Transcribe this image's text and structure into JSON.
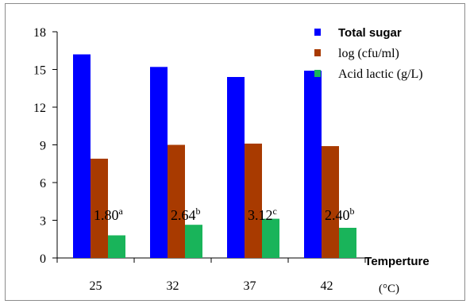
{
  "chart_data": {
    "type": "bar",
    "title": "",
    "xlabel": "Temperture",
    "xunit": "(°C)",
    "ylabel": "",
    "ylim": [
      0,
      18
    ],
    "yticks": [
      0,
      3,
      6,
      9,
      12,
      15,
      18
    ],
    "grid": false,
    "legend_position": "top-right",
    "categories": [
      "25",
      "32",
      "37",
      "42"
    ],
    "series": [
      {
        "name": "Total sugar",
        "color": "#0000ff",
        "values": [
          16.2,
          15.2,
          14.4,
          14.9
        ]
      },
      {
        "name": "log (cfu/ml)",
        "color": "#a83a00",
        "values": [
          7.9,
          9.0,
          9.1,
          8.9
        ]
      },
      {
        "name": "Acid lactic (g/L)",
        "color": "#19b45a",
        "values": [
          1.8,
          2.64,
          3.12,
          2.4
        ]
      }
    ],
    "annotations": [
      {
        "text": "1.80",
        "sup": "a"
      },
      {
        "text": "2.64",
        "sup": "b"
      },
      {
        "text": "3.12",
        "sup": "c"
      },
      {
        "text": "2.40",
        "sup": "b"
      }
    ]
  }
}
